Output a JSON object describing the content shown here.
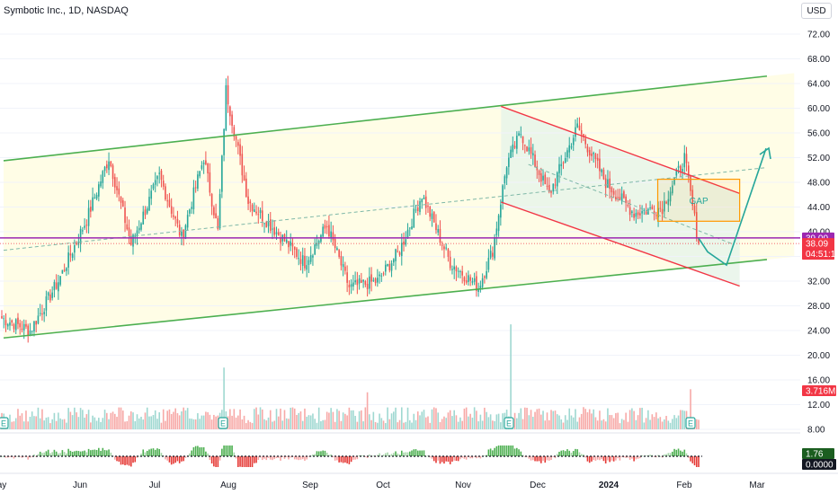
{
  "chart_data": {
    "type": "candlestick",
    "title": "Symbotic Inc., 1D, NASDAQ",
    "currency": "USD",
    "x_ticks": [
      "ay",
      "Jun",
      "Jul",
      "Aug",
      "Sep",
      "Oct",
      "Nov",
      "Dec",
      "2024",
      "Feb",
      "Mar"
    ],
    "y_ticks": [
      "72.00",
      "68.00",
      "64.00",
      "60.00",
      "56.00",
      "52.00",
      "48.00",
      "44.00",
      "40.00",
      "36.00",
      "32.00",
      "28.00",
      "24.00",
      "20.00",
      "16.00",
      "12.00",
      "8.00"
    ],
    "ylim": [
      8,
      75
    ],
    "price_labels": {
      "level": "39.00",
      "last": "38.09",
      "countdown": "04:51:13",
      "volume": "3.716M",
      "osc_up": "1.76",
      "osc_zero": "0.0000"
    },
    "annotations": [
      "GAP"
    ],
    "earnings_marker": "E",
    "levels": {
      "horizontal": 39.0,
      "last_close": 38.09
    },
    "channels": {
      "green_upper": [
        [
          0,
          51.5
        ],
        [
          112,
          65.2
        ]
      ],
      "green_lower": [
        [
          0,
          22.8
        ],
        [
          112,
          35.5
        ]
      ],
      "green_mid": [
        [
          0,
          37.0
        ],
        [
          112,
          50.4
        ]
      ],
      "red_upper": [
        [
          73,
          60.3
        ],
        [
          108,
          46.2
        ]
      ],
      "red_lower": [
        [
          73,
          44.8
        ],
        [
          108,
          31.2
        ]
      ],
      "red_mid": [
        [
          77,
          50.9
        ],
        [
          107,
          38.0
        ]
      ]
    },
    "gap_zone": {
      "from_day": 94,
      "to_day": 108,
      "low": 41.7,
      "high": 48.5
    },
    "projection": [
      [
        97,
        37.5
      ],
      [
        99,
        35.0
      ],
      [
        101,
        35.0
      ],
      [
        105,
        53.5
      ]
    ],
    "series": [
      {
        "name": "price",
        "style": "candles",
        "colors": {
          "up": "#26a69a",
          "down": "#ef5350"
        },
        "anchors": [
          [
            0,
            26
          ],
          [
            4,
            24
          ],
          [
            8,
            32
          ],
          [
            12,
            42
          ],
          [
            15,
            52
          ],
          [
            18,
            38
          ],
          [
            22,
            49
          ],
          [
            25,
            39
          ],
          [
            28,
            52
          ],
          [
            30,
            40
          ],
          [
            31,
            63
          ],
          [
            34,
            45
          ],
          [
            38,
            40
          ],
          [
            42,
            35
          ],
          [
            45,
            41
          ],
          [
            48,
            31
          ],
          [
            52,
            32
          ],
          [
            55,
            37
          ],
          [
            58,
            46
          ],
          [
            62,
            35
          ],
          [
            66,
            31
          ],
          [
            68,
            37
          ],
          [
            70,
            51
          ],
          [
            72,
            56
          ],
          [
            76,
            46
          ],
          [
            80,
            57
          ],
          [
            84,
            48
          ],
          [
            88,
            43
          ],
          [
            92,
            44
          ],
          [
            95,
            52
          ],
          [
            97,
            38.09
          ]
        ]
      },
      {
        "name": "volume",
        "style": "bars",
        "colors": {
          "up": "#26a69a",
          "down": "#ef5350"
        },
        "spikes": [
          [
            31,
            18
          ],
          [
            51,
            14
          ],
          [
            71,
            25
          ],
          [
            96,
            14.5
          ]
        ]
      },
      {
        "name": "oscillator",
        "style": "histogram",
        "colors": {
          "up": "#26a69a",
          "down": "#ef5350"
        }
      }
    ],
    "colors": {
      "channel_green": "#4caf50",
      "channel_red": "#f23645",
      "horizontal_level": "#9c27b0",
      "gap_box": "#ff9800",
      "projection_arrow": "#26a69a",
      "zone_fill_yellow": "#fffde6",
      "zone_fill_green": "#e8f5e9"
    }
  }
}
